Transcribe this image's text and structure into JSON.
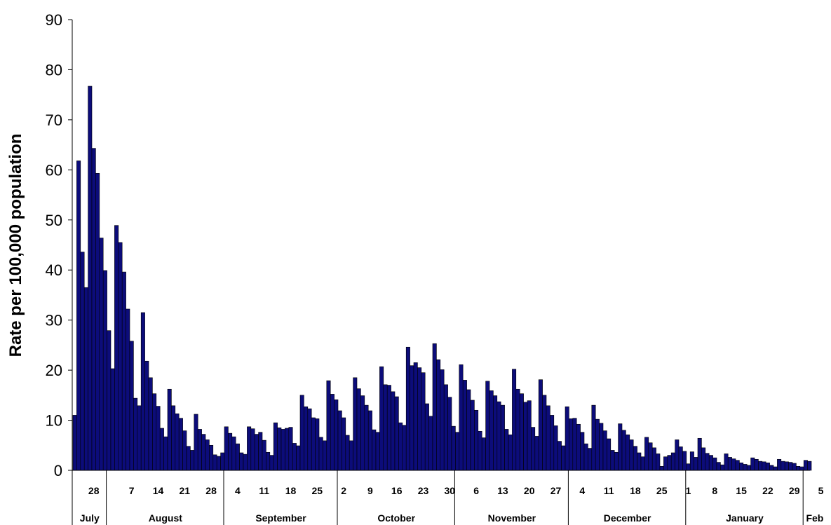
{
  "chart_data": {
    "type": "bar",
    "title": "",
    "ylabel": "Rate per 100,000 population",
    "xlabel": "",
    "ylim": [
      0,
      90
    ],
    "yticks": [
      0,
      10,
      20,
      30,
      40,
      50,
      60,
      70,
      80,
      90
    ],
    "bar_color": "#0c0c7a",
    "grid": false,
    "start_date": "2009-07-23",
    "end_date": "2010-02-06",
    "values": [
      11.0,
      61.8,
      43.6,
      36.5,
      76.7,
      64.3,
      59.3,
      46.4,
      39.9,
      27.9,
      20.3,
      48.9,
      45.5,
      39.6,
      32.2,
      25.8,
      14.4,
      12.9,
      31.5,
      21.8,
      18.5,
      15.3,
      12.8,
      8.4,
      6.7,
      16.2,
      12.9,
      11.3,
      10.4,
      7.9,
      4.8,
      4.0,
      11.2,
      8.2,
      7.2,
      6.1,
      5.0,
      3.1,
      2.8,
      3.5,
      8.7,
      7.4,
      6.7,
      5.3,
      3.5,
      3.2,
      8.7,
      8.3,
      7.2,
      7.6,
      6.0,
      3.6,
      3.0,
      9.5,
      8.5,
      8.2,
      8.4,
      8.6,
      5.4,
      4.9,
      15.0,
      12.7,
      12.3,
      10.5,
      10.3,
      6.6,
      5.9,
      17.9,
      15.2,
      14.1,
      11.9,
      10.5,
      7.0,
      5.9,
      18.5,
      16.3,
      14.9,
      13.0,
      11.9,
      8.1,
      7.6,
      20.7,
      17.1,
      17.0,
      15.7,
      14.7,
      9.5,
      9.0,
      24.6,
      20.9,
      21.5,
      20.5,
      19.5,
      13.3,
      10.8,
      25.3,
      22.1,
      20.1,
      17.1,
      14.6,
      8.8,
      7.6,
      21.1,
      18.0,
      16.1,
      14.0,
      12.0,
      7.8,
      6.5,
      17.8,
      15.9,
      14.9,
      13.7,
      13.0,
      8.2,
      7.1,
      20.2,
      16.2,
      15.3,
      13.6,
      13.9,
      8.6,
      6.8,
      18.1,
      15.0,
      12.9,
      11.0,
      8.9,
      5.8,
      4.9,
      12.7,
      10.3,
      10.4,
      9.2,
      7.6,
      5.3,
      4.4,
      13.0,
      10.2,
      9.4,
      7.9,
      6.3,
      4.0,
      3.6,
      9.3,
      8.0,
      7.1,
      6.1,
      4.8,
      3.5,
      2.7,
      6.6,
      5.5,
      4.5,
      3.3,
      0.8,
      2.7,
      3.0,
      3.5,
      6.1,
      4.7,
      3.8,
      1.3,
      3.7,
      2.6,
      6.4,
      4.5,
      3.4,
      3.0,
      2.5,
      1.6,
      1.1,
      3.3,
      2.6,
      2.3,
      2.0,
      1.5,
      1.2,
      1.0,
      2.5,
      2.2,
      1.8,
      1.7,
      1.5,
      1.0,
      0.7,
      2.2,
      1.8,
      1.7,
      1.6,
      1.4,
      0.8,
      0.7,
      2.0,
      1.8
    ],
    "x_day_ticks": [
      {
        "label": "28",
        "date": "2009-07-28"
      },
      {
        "label": "7",
        "date": "2009-08-07"
      },
      {
        "label": "14",
        "date": "2009-08-14"
      },
      {
        "label": "21",
        "date": "2009-08-21"
      },
      {
        "label": "28",
        "date": "2009-08-28"
      },
      {
        "label": "4",
        "date": "2009-09-04"
      },
      {
        "label": "11",
        "date": "2009-09-11"
      },
      {
        "label": "18",
        "date": "2009-09-18"
      },
      {
        "label": "25",
        "date": "2009-09-25"
      },
      {
        "label": "2",
        "date": "2009-10-02"
      },
      {
        "label": "9",
        "date": "2009-10-09"
      },
      {
        "label": "16",
        "date": "2009-10-16"
      },
      {
        "label": "23",
        "date": "2009-10-23"
      },
      {
        "label": "30",
        "date": "2009-10-30"
      },
      {
        "label": "6",
        "date": "2009-11-06"
      },
      {
        "label": "13",
        "date": "2009-11-13"
      },
      {
        "label": "20",
        "date": "2009-11-20"
      },
      {
        "label": "27",
        "date": "2009-11-27"
      },
      {
        "label": "4",
        "date": "2009-12-04"
      },
      {
        "label": "11",
        "date": "2009-12-11"
      },
      {
        "label": "18",
        "date": "2009-12-18"
      },
      {
        "label": "25",
        "date": "2009-12-25"
      },
      {
        "label": "1",
        "date": "2010-01-01"
      },
      {
        "label": "8",
        "date": "2010-01-08"
      },
      {
        "label": "15",
        "date": "2010-01-15"
      },
      {
        "label": "22",
        "date": "2010-01-22"
      },
      {
        "label": "29",
        "date": "2010-01-29"
      },
      {
        "label": "5",
        "date": "2010-02-05"
      }
    ],
    "months": [
      {
        "label": "July",
        "start": "2009-07-23",
        "end": "2009-07-31"
      },
      {
        "label": "August",
        "start": "2009-08-01",
        "end": "2009-08-31"
      },
      {
        "label": "September",
        "start": "2009-09-01",
        "end": "2009-09-30"
      },
      {
        "label": "October",
        "start": "2009-10-01",
        "end": "2009-10-31"
      },
      {
        "label": "November",
        "start": "2009-11-01",
        "end": "2009-11-30"
      },
      {
        "label": "December",
        "start": "2009-12-01",
        "end": "2009-12-31"
      },
      {
        "label": "January",
        "start": "2010-01-01",
        "end": "2010-01-31"
      },
      {
        "label": "Feb",
        "start": "2010-02-01",
        "end": "2010-02-06"
      }
    ]
  }
}
